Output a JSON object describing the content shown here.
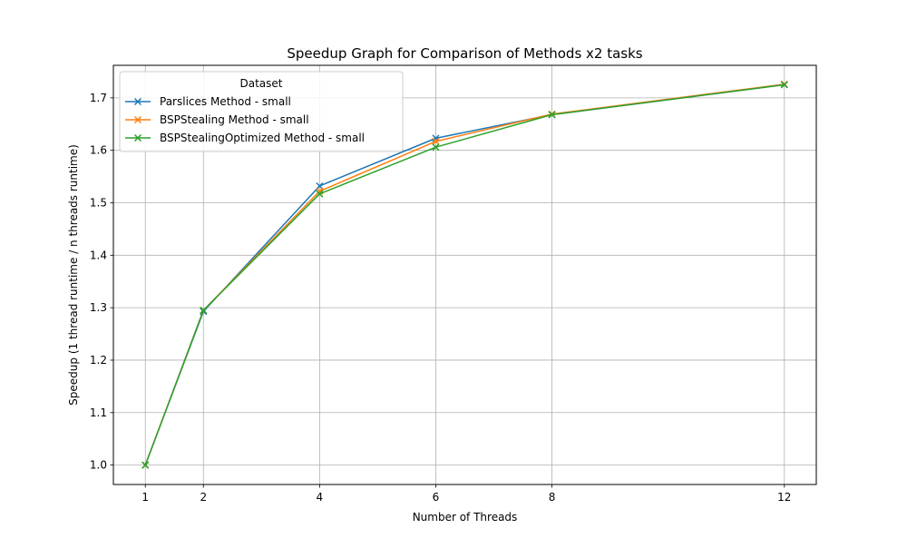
{
  "chart_data": {
    "type": "line",
    "title": "Speedup Graph for Comparison of Methods x2 tasks",
    "xlabel": "Number of Threads",
    "ylabel": "Speedup (1 thread runtime / n threads runtime)",
    "x": [
      1,
      2,
      4,
      6,
      8,
      12
    ],
    "x_ticks": [
      1,
      2,
      4,
      6,
      8,
      12
    ],
    "y_ticks": [
      1.0,
      1.1,
      1.2,
      1.3,
      1.4,
      1.5,
      1.6,
      1.7
    ],
    "xlim": [
      0.45,
      12.55
    ],
    "ylim": [
      0.963,
      1.762
    ],
    "grid": true,
    "legend": {
      "title": "Dataset",
      "placement": "upper-left"
    },
    "marker": "x",
    "series": [
      {
        "name": "Parslices Method - small",
        "color": "#1f77b4",
        "values": [
          1.0,
          1.293,
          1.532,
          1.623,
          1.668,
          1.725
        ]
      },
      {
        "name": "BSPStealing Method - small",
        "color": "#ff7f0e",
        "values": [
          1.0,
          1.295,
          1.522,
          1.617,
          1.669,
          1.726
        ]
      },
      {
        "name": "BSPStealingOptimized Method - small",
        "color": "#2ca02c",
        "values": [
          1.0,
          1.295,
          1.517,
          1.606,
          1.668,
          1.725
        ]
      }
    ]
  }
}
